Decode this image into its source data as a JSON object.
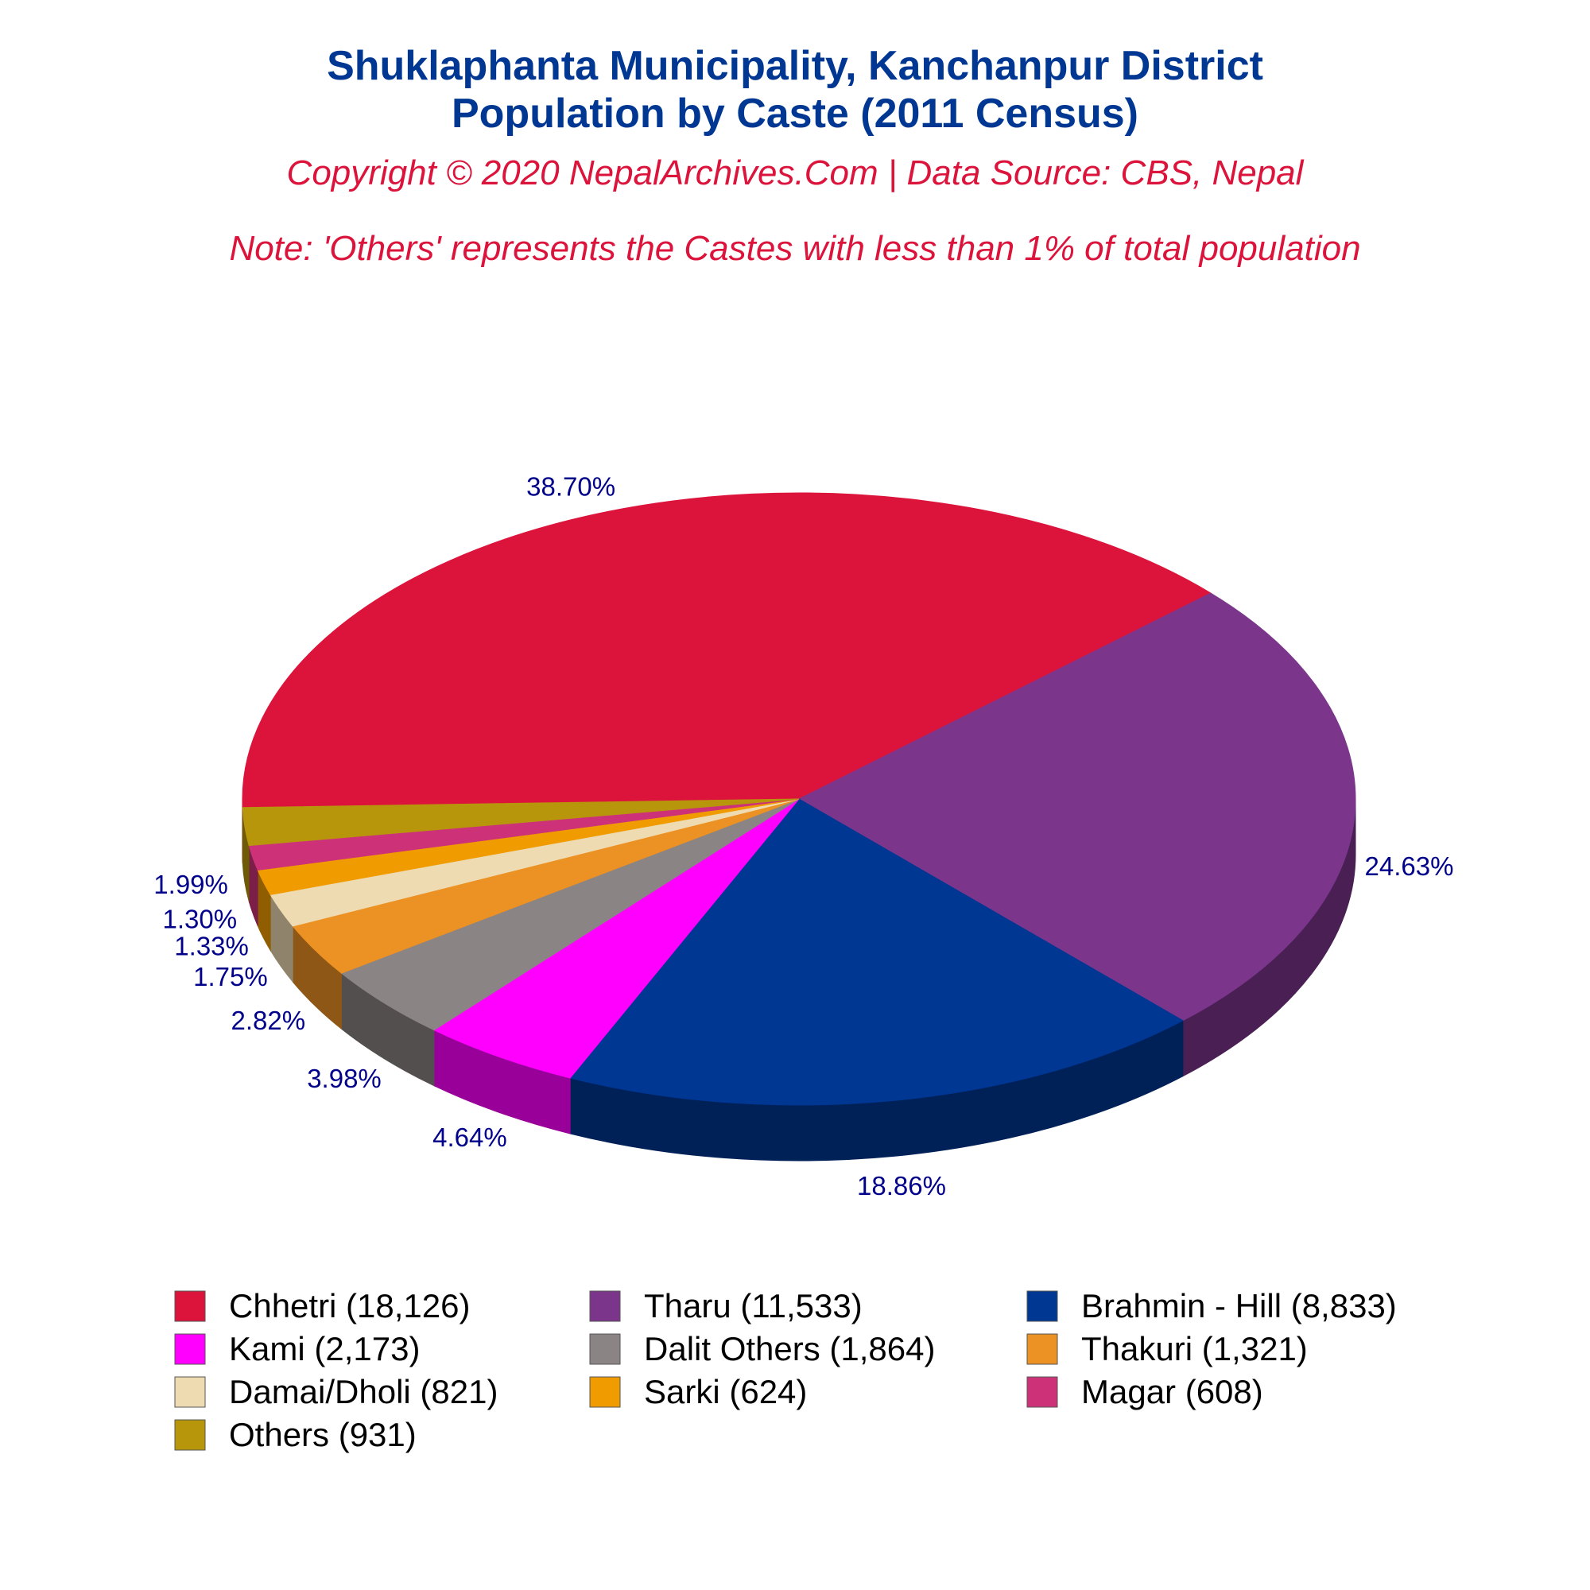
{
  "chart_data": {
    "type": "pie",
    "style": "3d-tilted",
    "title": "Shuklaphanta Municipality, Kanchanpur District",
    "title_line2": "Population by Caste (2011 Census)",
    "subtitle": "Copyright © 2020 NepalArchives.Com | Data Source: CBS, Nepal",
    "note": "Note: 'Others' represents the Castes with less than 1% of total population",
    "legend_position": "bottom",
    "slices": [
      {
        "label": "Chhetri (18,126)",
        "name": "Chhetri",
        "value": 18126,
        "percent_label": "38.70%",
        "color": "#dc143c"
      },
      {
        "label": "Tharu (11,533)",
        "name": "Tharu",
        "value": 11533,
        "percent_label": "24.63%",
        "color": "#7b368c"
      },
      {
        "label": "Brahmin - Hill (8,833)",
        "name": "Brahmin - Hill",
        "value": 8833,
        "percent_label": "18.86%",
        "color": "#003793"
      },
      {
        "label": "Kami (2,173)",
        "name": "Kami",
        "value": 2173,
        "percent_label": "4.64%",
        "color": "#ff00ff"
      },
      {
        "label": "Dalit Others (1,864)",
        "name": "Dalit Others",
        "value": 1864,
        "percent_label": "3.98%",
        "color": "#8b8484"
      },
      {
        "label": "Thakuri (1,321)",
        "name": "Thakuri",
        "value": 1321,
        "percent_label": "2.82%",
        "color": "#ec9123"
      },
      {
        "label": "Damai/Dholi (821)",
        "name": "Damai/Dholi",
        "value": 821,
        "percent_label": "1.75%",
        "color": "#eedbb2"
      },
      {
        "label": "Sarki (624)",
        "name": "Sarki",
        "value": 624,
        "percent_label": "1.33%",
        "color": "#f09b00"
      },
      {
        "label": "Magar (608)",
        "name": "Magar",
        "value": 608,
        "percent_label": "1.30%",
        "color": "#cd3278"
      },
      {
        "label": "Others (931)",
        "name": "Others",
        "value": 931,
        "percent_label": "1.99%",
        "color": "#b8960c"
      }
    ],
    "colors": {
      "title": "#003793",
      "subtitle": "#dc143c",
      "percent_labels": "#00008b"
    }
  }
}
